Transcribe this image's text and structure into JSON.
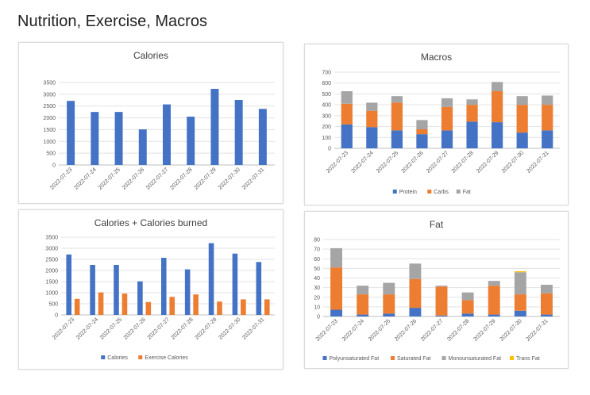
{
  "page": {
    "title": "Nutrition, Exercise, Macros"
  },
  "colors": {
    "blue": "#4472c4",
    "orange": "#ed7d31",
    "gray": "#a5a5a5",
    "gold": "#ffc000",
    "grid": "#e3e3e3",
    "axis": "#bfbfbf",
    "text": "#595959",
    "title": "#404040"
  },
  "chart_data": [
    {
      "id": "calories",
      "type": "bar",
      "title": "Calories",
      "categories": [
        "2022-07-23",
        "2022-07-24",
        "2022-07-25",
        "2022-07-26",
        "2022-07-27",
        "2022-07-28",
        "2022-07-29",
        "2022-07-30",
        "2022-07-31"
      ],
      "series": [
        {
          "name": "Calories",
          "color": "#4472c4",
          "values": [
            2720,
            2250,
            2250,
            1510,
            2570,
            2050,
            3230,
            2760,
            2380
          ]
        }
      ],
      "ylim": [
        0,
        3500
      ],
      "yticks": [
        0,
        500,
        1000,
        1500,
        2000,
        2500,
        3000,
        3500
      ],
      "legend": "none",
      "grid": true
    },
    {
      "id": "macros",
      "type": "bar",
      "stacked": true,
      "title": "Macros",
      "categories": [
        "2022-07-23",
        "2022-07-24",
        "2022-07-25",
        "2022-07-26",
        "2022-07-27",
        "2022-07-28",
        "2022-07-29",
        "2022-07-30",
        "2022-07-31"
      ],
      "series": [
        {
          "name": "Protein",
          "color": "#4472c4",
          "values": [
            220,
            195,
            165,
            130,
            165,
            245,
            240,
            145,
            165
          ]
        },
        {
          "name": "Carbs",
          "color": "#ed7d31",
          "values": [
            190,
            150,
            255,
            45,
            215,
            155,
            285,
            255,
            235
          ]
        },
        {
          "name": "Fat",
          "color": "#a5a5a5",
          "values": [
            115,
            75,
            60,
            85,
            80,
            50,
            85,
            80,
            85
          ]
        }
      ],
      "ylim": [
        0,
        700
      ],
      "yticks": [
        0,
        100,
        200,
        300,
        400,
        500,
        600,
        700
      ],
      "legend": "bottom",
      "grid": true
    },
    {
      "id": "calories-burned",
      "type": "bar",
      "title": "Calories + Calories burned",
      "categories": [
        "2022-07-23",
        "2022-07-24",
        "2022-07-25",
        "2022-07-26",
        "2022-07-27",
        "2022-07-28",
        "2022-07-29",
        "2022-07-30",
        "2022-07-31"
      ],
      "series": [
        {
          "name": "Calories",
          "color": "#4472c4",
          "values": [
            2720,
            2250,
            2250,
            1510,
            2570,
            2050,
            3230,
            2760,
            2380
          ]
        },
        {
          "name": "Exercise Calories",
          "color": "#ed7d31",
          "values": [
            720,
            1010,
            960,
            580,
            810,
            920,
            600,
            700,
            700
          ]
        }
      ],
      "ylim": [
        0,
        3500
      ],
      "yticks": [
        0,
        500,
        1000,
        1500,
        2000,
        2500,
        3000,
        3500
      ],
      "legend": "bottom",
      "grid": true
    },
    {
      "id": "fat",
      "type": "bar",
      "stacked": true,
      "title": "Fat",
      "categories": [
        "2022-07-23",
        "2022-07-24",
        "2022-07-25",
        "2022-07-26",
        "2022-07-27",
        "2022-07-28",
        "2022-07-29",
        "2022-07-30",
        "2022-07-31"
      ],
      "series": [
        {
          "name": "Polyunsaturated Fat",
          "color": "#4472c4",
          "values": [
            7,
            2,
            3,
            9,
            1,
            3,
            2,
            6,
            2
          ]
        },
        {
          "name": "Saturated Fat",
          "color": "#ed7d31",
          "values": [
            44,
            21,
            20,
            30,
            30,
            14,
            30,
            17,
            22
          ]
        },
        {
          "name": "Monounsaturated Fat",
          "color": "#a5a5a5",
          "values": [
            20,
            9,
            12,
            16,
            1,
            8,
            5,
            23,
            9
          ]
        },
        {
          "name": "Trans Fat",
          "color": "#ffc000",
          "values": [
            0,
            0,
            0,
            0,
            0,
            0,
            0,
            1,
            0
          ]
        }
      ],
      "ylim": [
        0,
        80
      ],
      "yticks": [
        0,
        10,
        20,
        30,
        40,
        50,
        60,
        70,
        80
      ],
      "legend": "bottom",
      "grid": true
    }
  ]
}
